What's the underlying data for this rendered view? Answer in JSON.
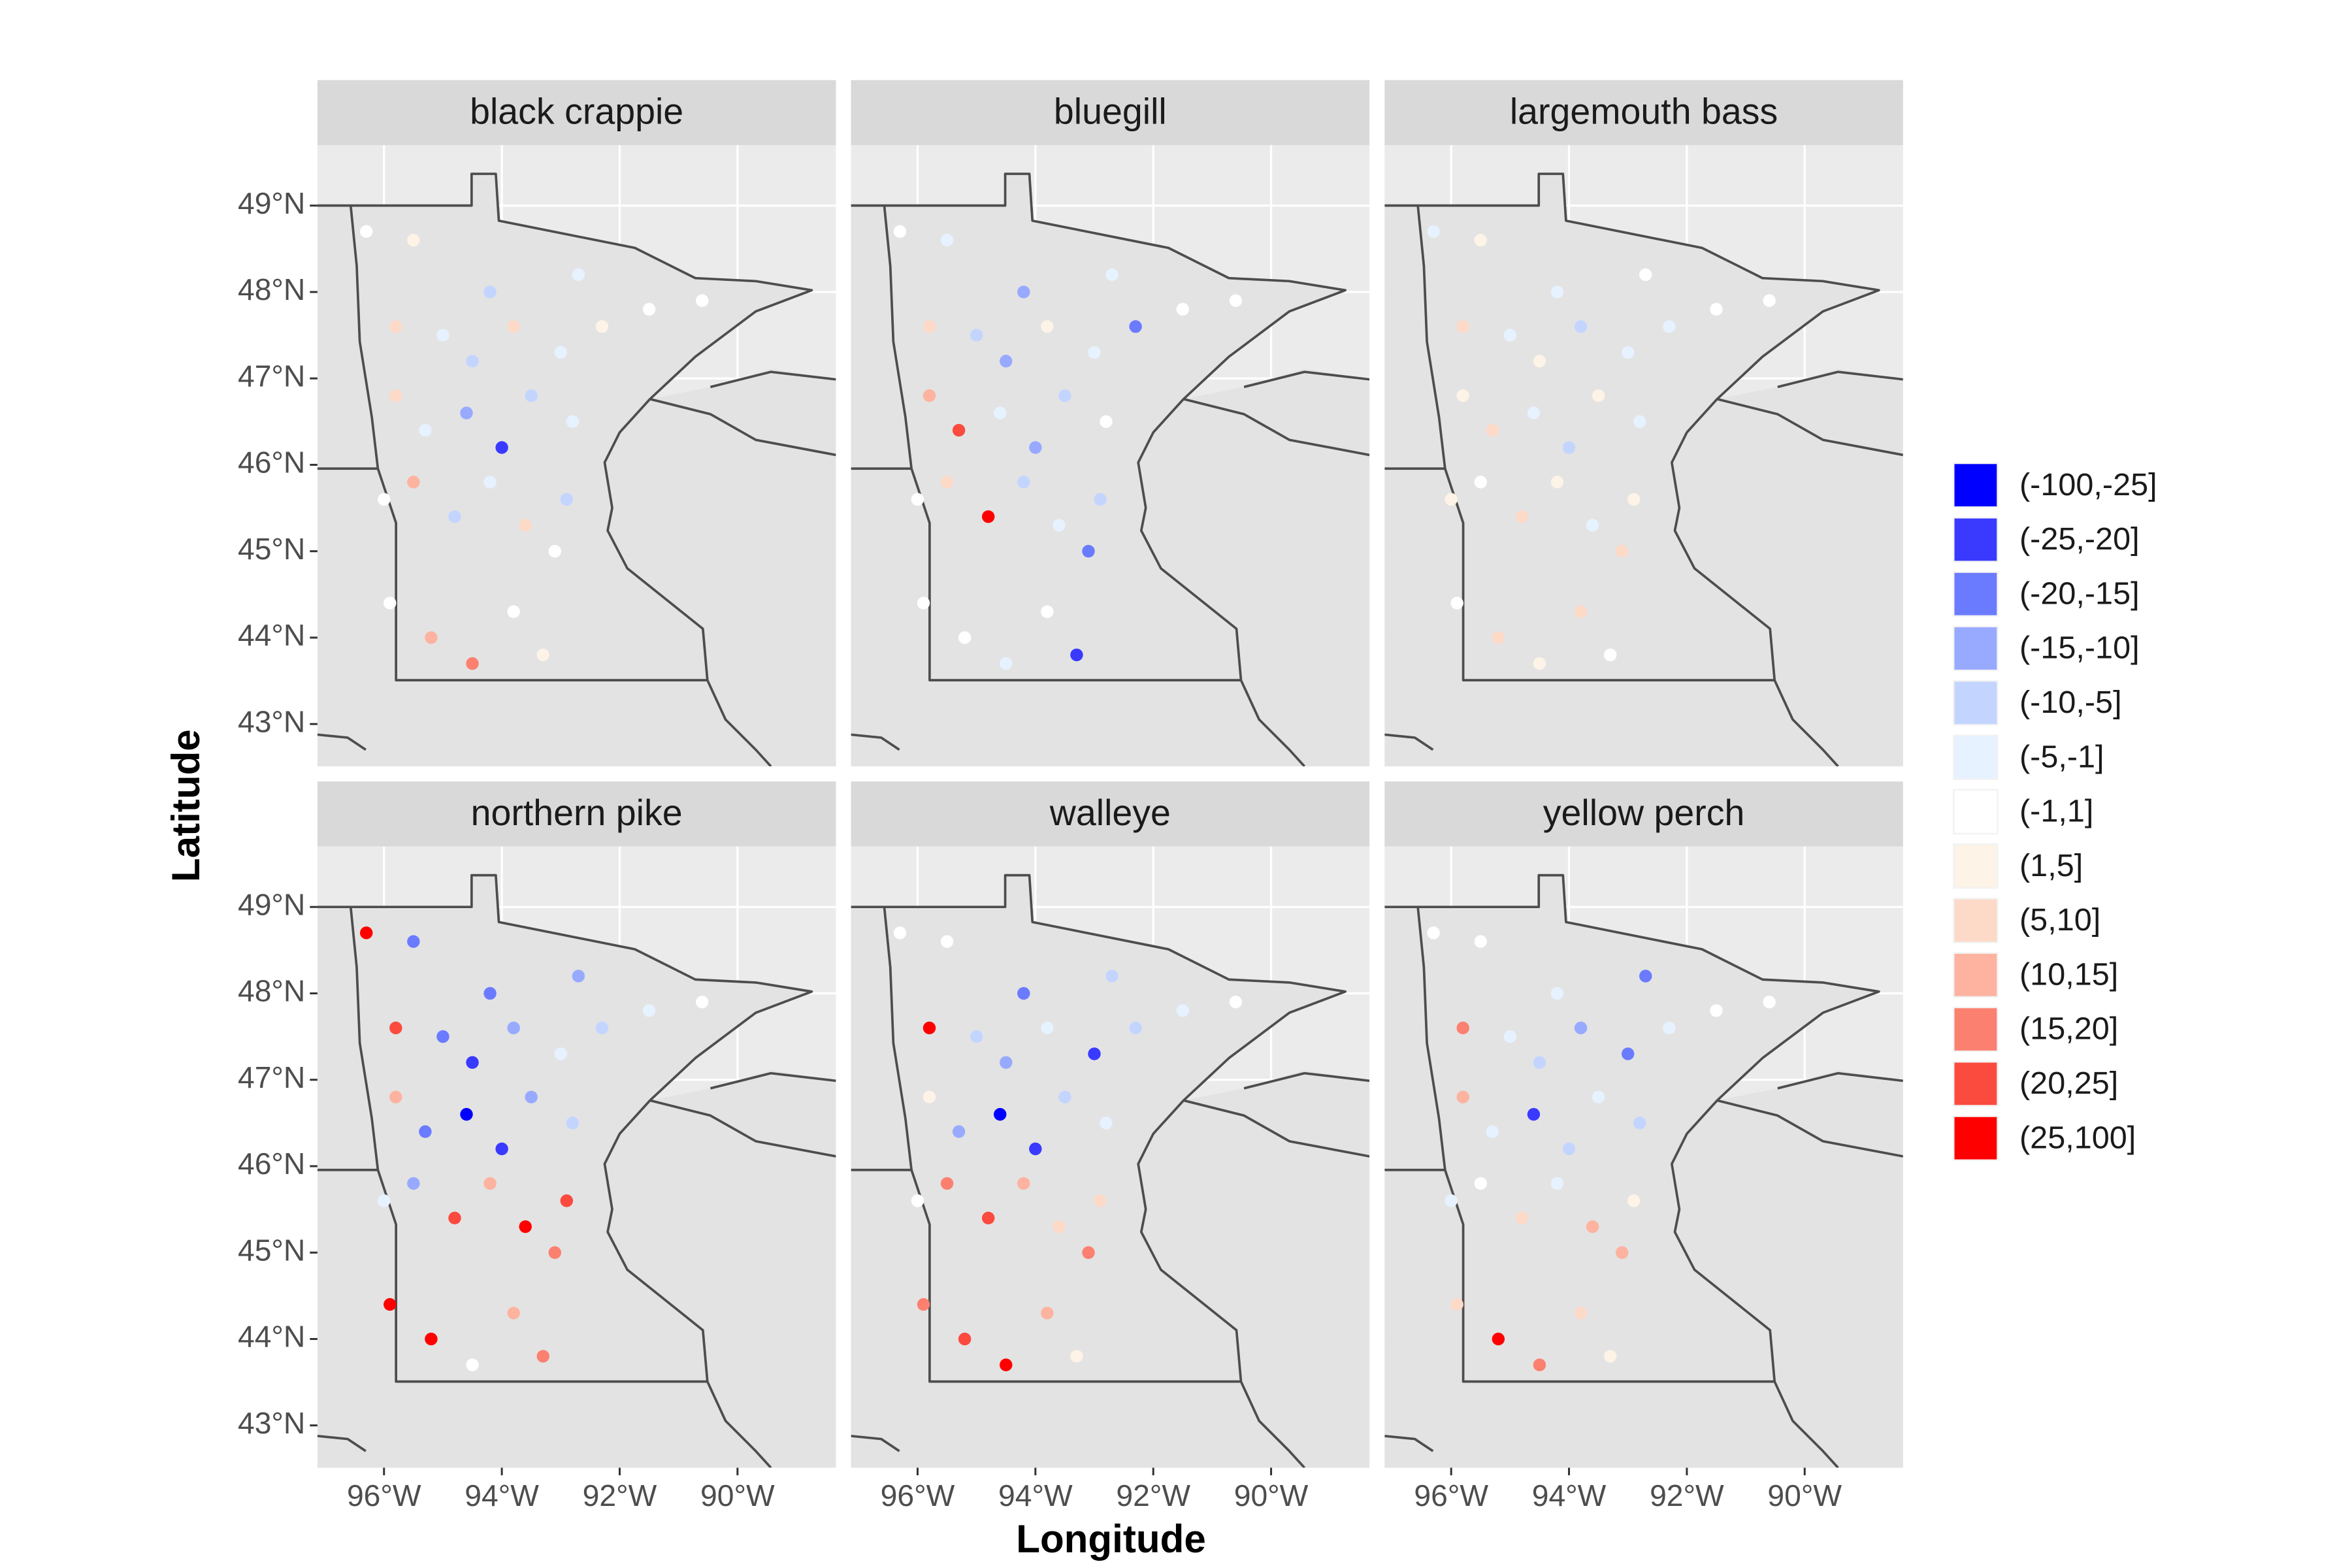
{
  "chart_data": {
    "type": "scatter",
    "xlabel": "Longitude",
    "ylabel": "Latitude",
    "xlim": [
      -97.13,
      -88.33
    ],
    "ylim": [
      42.51,
      49.7
    ],
    "xticks": [
      {
        "value": -96,
        "label": "96°W"
      },
      {
        "value": -94,
        "label": "94°W"
      },
      {
        "value": -92,
        "label": "92°W"
      },
      {
        "value": -90,
        "label": "90°W"
      }
    ],
    "yticks": [
      {
        "value": 43,
        "label": "43°N"
      },
      {
        "value": 44,
        "label": "44°N"
      },
      {
        "value": 45,
        "label": "45°N"
      },
      {
        "value": 46,
        "label": "46°N"
      },
      {
        "value": 47,
        "label": "47°N"
      },
      {
        "value": 48,
        "label": "48°N"
      },
      {
        "value": 49,
        "label": "49°N"
      }
    ],
    "grid": true,
    "legend": {
      "position": "right",
      "labels": [
        "(-100,-25]",
        "(-25,-20]",
        "(-20,-15]",
        "(-15,-10]",
        "(-10,-5]",
        "(-5,-1]",
        "(-1,1]",
        "(1,5]",
        "(5,10]",
        "(10,15]",
        "(15,20]",
        "(20,25]",
        "(25,100]"
      ],
      "colors": [
        "#0000ff",
        "#3a3aff",
        "#6b7bff",
        "#98aaff",
        "#c3d5ff",
        "#e6f2ff",
        "#ffffff",
        "#fdf3e6",
        "#fdd9c8",
        "#fdb3a0",
        "#fc8070",
        "#fb4a3e",
        "#ff0000"
      ]
    },
    "panels": [
      {
        "title": "black crappie",
        "series": [
          {
            "x": [],
            "y": []
          },
          {
            "x": [
              -94.0
            ],
            "y": [
              46.2
            ]
          },
          {
            "x": [],
            "y": []
          },
          {
            "x": [
              -94.6
            ],
            "y": [
              46.6
            ]
          },
          {
            "x": [
              -94.5,
              -93.5,
              -94.8,
              -92.9,
              -94.2
            ],
            "y": [
              47.2,
              46.8,
              45.4,
              45.6,
              48.0
            ]
          },
          {
            "x": [
              -95.0,
              -93.0,
              -95.3,
              -92.8,
              -94.2,
              -92.7
            ],
            "y": [
              47.5,
              47.3,
              46.4,
              46.5,
              45.8,
              48.2
            ]
          },
          {
            "x": [
              -91.5,
              -90.6,
              -93.1,
              -95.9,
              -93.8,
              -96.3,
              -96.0
            ],
            "y": [
              47.8,
              47.9,
              45.0,
              44.4,
              44.3,
              48.7,
              45.6
            ]
          },
          {
            "x": [
              -92.3,
              -93.3,
              -95.5
            ],
            "y": [
              47.6,
              43.8,
              48.6
            ]
          },
          {
            "x": [
              -93.8,
              -95.8,
              -93.6,
              -95.8
            ],
            "y": [
              47.6,
              46.8,
              45.3,
              47.6
            ]
          },
          {
            "x": [
              -95.5,
              -95.2
            ],
            "y": [
              45.8,
              44.0
            ]
          },
          {
            "x": [
              -94.5
            ],
            "y": [
              43.7
            ]
          },
          {
            "x": [],
            "y": []
          },
          {
            "x": [],
            "y": []
          }
        ]
      },
      {
        "title": "bluegill",
        "series": [
          {
            "x": [],
            "y": []
          },
          {
            "x": [
              -93.3
            ],
            "y": [
              43.8
            ]
          },
          {
            "x": [
              -92.3,
              -93.1
            ],
            "y": [
              47.6,
              45.0
            ]
          },
          {
            "x": [
              -94.5,
              -94.0,
              -94.2
            ],
            "y": [
              47.2,
              46.2,
              48.0
            ]
          },
          {
            "x": [
              -95.0,
              -93.5,
              -94.2,
              -92.9
            ],
            "y": [
              47.5,
              46.8,
              45.8,
              45.6
            ]
          },
          {
            "x": [
              -93.0,
              -94.6,
              -93.6,
              -94.5,
              -95.5,
              -92.7
            ],
            "y": [
              47.3,
              46.6,
              45.3,
              43.7,
              48.6,
              48.2
            ]
          },
          {
            "x": [
              -91.5,
              -90.6,
              -92.8,
              -95.9,
              -95.2,
              -93.8,
              -96.3,
              -96.0
            ],
            "y": [
              47.8,
              47.9,
              46.5,
              44.4,
              44.0,
              44.3,
              48.7,
              45.6
            ]
          },
          {
            "x": [
              -93.8
            ],
            "y": [
              47.6
            ]
          },
          {
            "x": [
              -95.5,
              -95.8
            ],
            "y": [
              45.8,
              47.6
            ]
          },
          {
            "x": [
              -95.8
            ],
            "y": [
              46.8
            ]
          },
          {
            "x": [],
            "y": []
          },
          {
            "x": [
              -95.3
            ],
            "y": [
              46.4
            ]
          },
          {
            "x": [
              -94.8
            ],
            "y": [
              45.4
            ]
          }
        ]
      },
      {
        "title": "largemouth bass",
        "series": [
          {
            "x": [],
            "y": []
          },
          {
            "x": [],
            "y": []
          },
          {
            "x": [],
            "y": []
          },
          {
            "x": [],
            "y": []
          },
          {
            "x": [
              -93.8,
              -94.0
            ],
            "y": [
              47.6,
              46.2
            ]
          },
          {
            "x": [
              -95.0,
              -93.0,
              -92.3,
              -94.6,
              -92.8,
              -93.6,
              -96.3,
              -94.2
            ],
            "y": [
              47.5,
              47.3,
              47.6,
              46.6,
              46.5,
              45.3,
              48.7,
              48.0
            ]
          },
          {
            "x": [
              -91.5,
              -90.6,
              -95.5,
              -95.9,
              -93.3,
              -92.7
            ],
            "y": [
              47.8,
              47.9,
              45.8,
              44.4,
              43.8,
              48.2
            ]
          },
          {
            "x": [
              -94.5,
              -95.8,
              -93.5,
              -94.2,
              -92.9,
              -94.5,
              -95.5,
              -96.0
            ],
            "y": [
              47.2,
              46.8,
              46.8,
              45.8,
              45.6,
              43.7,
              48.6,
              45.6
            ]
          },
          {
            "x": [
              -95.3,
              -94.8,
              -93.1,
              -95.2,
              -93.8,
              -95.8
            ],
            "y": [
              46.4,
              45.4,
              45.0,
              44.0,
              44.3,
              47.6
            ]
          },
          {
            "x": [],
            "y": []
          },
          {
            "x": [],
            "y": []
          },
          {
            "x": [],
            "y": []
          },
          {
            "x": [],
            "y": []
          }
        ]
      },
      {
        "title": "northern pike",
        "series": [
          {
            "x": [
              -94.6
            ],
            "y": [
              46.6
            ]
          },
          {
            "x": [
              -94.5,
              -94.0
            ],
            "y": [
              47.2,
              46.2
            ]
          },
          {
            "x": [
              -95.0,
              -95.3,
              -95.5,
              -94.2
            ],
            "y": [
              47.5,
              46.4,
              48.6,
              48.0
            ]
          },
          {
            "x": [
              -93.8,
              -93.5,
              -95.5,
              -92.7
            ],
            "y": [
              47.6,
              46.8,
              45.8,
              48.2
            ]
          },
          {
            "x": [
              -92.3,
              -92.8
            ],
            "y": [
              47.6,
              46.5
            ]
          },
          {
            "x": [
              -93.0,
              -91.5,
              -96.0
            ],
            "y": [
              47.3,
              47.8,
              45.6
            ]
          },
          {
            "x": [
              -90.6,
              -94.5
            ],
            "y": [
              47.9,
              43.7
            ]
          },
          {
            "x": [],
            "y": []
          },
          {
            "x": [],
            "y": []
          },
          {
            "x": [
              -95.8,
              -94.2,
              -93.8
            ],
            "y": [
              46.8,
              45.8,
              44.3
            ]
          },
          {
            "x": [
              -93.1,
              -93.3
            ],
            "y": [
              45.0,
              43.8
            ]
          },
          {
            "x": [
              -94.8,
              -92.9,
              -95.8
            ],
            "y": [
              45.4,
              45.6,
              47.6
            ]
          },
          {
            "x": [
              -93.6,
              -95.9,
              -95.2,
              -96.3
            ],
            "y": [
              45.3,
              44.4,
              44.0,
              48.7
            ]
          }
        ]
      },
      {
        "title": "walleye",
        "series": [
          {
            "x": [
              -94.6
            ],
            "y": [
              46.6
            ]
          },
          {
            "x": [
              -93.0,
              -94.0
            ],
            "y": [
              47.3,
              46.2
            ]
          },
          {
            "x": [
              -94.2
            ],
            "y": [
              48.0
            ]
          },
          {
            "x": [
              -94.5,
              -95.3
            ],
            "y": [
              47.2,
              46.4
            ]
          },
          {
            "x": [
              -95.0,
              -92.3,
              -93.5,
              -92.7
            ],
            "y": [
              47.5,
              47.6,
              46.8,
              48.2
            ]
          },
          {
            "x": [
              -93.8,
              -91.5,
              -92.8
            ],
            "y": [
              47.6,
              47.8,
              46.5
            ]
          },
          {
            "x": [
              -90.6,
              -96.3,
              -95.5,
              -96.0
            ],
            "y": [
              47.9,
              48.7,
              48.6,
              45.6
            ]
          },
          {
            "x": [
              -95.8,
              -93.3
            ],
            "y": [
              46.8,
              43.8
            ]
          },
          {
            "x": [
              -93.6,
              -92.9
            ],
            "y": [
              45.3,
              45.6
            ]
          },
          {
            "x": [
              -94.2,
              -93.8
            ],
            "y": [
              45.8,
              44.3
            ]
          },
          {
            "x": [
              -95.5,
              -93.1,
              -95.9
            ],
            "y": [
              45.8,
              45.0,
              44.4
            ]
          },
          {
            "x": [
              -94.8,
              -95.2
            ],
            "y": [
              45.4,
              44.0
            ]
          },
          {
            "x": [
              -94.5,
              -95.8
            ],
            "y": [
              43.7,
              47.6
            ]
          }
        ]
      },
      {
        "title": "yellow perch",
        "series": [
          {
            "x": [],
            "y": []
          },
          {
            "x": [
              -94.6
            ],
            "y": [
              46.6
            ]
          },
          {
            "x": [
              -93.0,
              -92.7
            ],
            "y": [
              47.3,
              48.2
            ]
          },
          {
            "x": [
              -93.8
            ],
            "y": [
              47.6
            ]
          },
          {
            "x": [
              -94.5,
              -94.0,
              -92.8
            ],
            "y": [
              47.2,
              46.2,
              46.5
            ]
          },
          {
            "x": [
              -95.0,
              -92.3,
              -95.3,
              -93.5,
              -94.2,
              -94.2,
              -96.0
            ],
            "y": [
              47.5,
              47.6,
              46.4,
              46.8,
              45.8,
              48.0,
              45.6
            ]
          },
          {
            "x": [
              -91.5,
              -90.6,
              -95.5,
              -96.3,
              -95.5
            ],
            "y": [
              47.8,
              47.9,
              45.8,
              48.7,
              48.6
            ]
          },
          {
            "x": [
              -92.9,
              -93.3
            ],
            "y": [
              45.6,
              43.8
            ]
          },
          {
            "x": [
              -94.8,
              -95.9,
              -93.8
            ],
            "y": [
              45.4,
              44.4,
              44.3
            ]
          },
          {
            "x": [
              -95.8,
              -93.6,
              -93.1
            ],
            "y": [
              46.8,
              45.3,
              45.0
            ]
          },
          {
            "x": [
              -94.5,
              -95.8
            ],
            "y": [
              43.7,
              47.6
            ]
          },
          {
            "x": [],
            "y": []
          },
          {
            "x": [
              -95.2
            ],
            "y": [
              44.0
            ]
          }
        ]
      }
    ]
  }
}
